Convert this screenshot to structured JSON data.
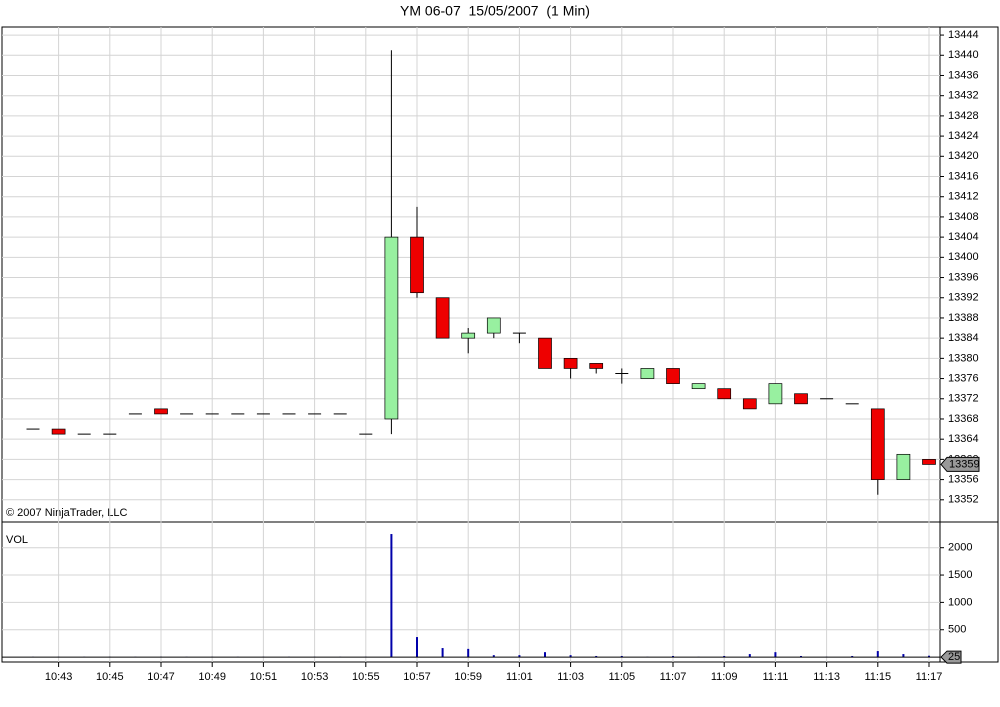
{
  "chart_data": [
    {
      "type": "candlestick",
      "title": "YM 06-07  15/05/2007  (1 Min)",
      "annotation": "© 2007 NinjaTrader, LLC",
      "categories": [
        null,
        "10:43",
        null,
        "10:45",
        null,
        "10:47",
        null,
        "10:49",
        null,
        "10:51",
        null,
        "10:53",
        null,
        "10:55",
        null,
        "10:57",
        null,
        "10:59",
        null,
        "11:01",
        null,
        "11:03",
        null,
        "11:05",
        null,
        "11:07",
        null,
        "11:09",
        null,
        "11:11",
        null,
        "11:13",
        null,
        "11:15",
        null,
        "11:17"
      ],
      "open": [
        13366,
        13366,
        13365,
        13365,
        13369,
        13370,
        13369,
        13369,
        13369,
        13369,
        13369,
        13369,
        13369,
        13365,
        13368,
        13404,
        13392,
        13384,
        13385,
        13385,
        13384,
        13380,
        13379,
        13377,
        13376,
        13378,
        13374,
        13374,
        13372,
        13371,
        13373,
        13372,
        13371,
        13370,
        13356,
        13360
      ],
      "high": [
        13366,
        13366,
        13365,
        13365,
        13369,
        13370,
        13369,
        13369,
        13369,
        13369,
        13369,
        13369,
        13369,
        13365,
        13441,
        13410,
        13392,
        13386,
        13388,
        13385,
        13384,
        13380,
        13379,
        13378,
        13378,
        13378,
        13375,
        13374,
        13372,
        13375,
        13373,
        13372,
        13371,
        13370,
        13361,
        13360
      ],
      "low": [
        13366,
        13365,
        13365,
        13365,
        13369,
        13369,
        13369,
        13369,
        13369,
        13369,
        13369,
        13369,
        13369,
        13365,
        13365,
        13392,
        13384,
        13381,
        13384,
        13383,
        13378,
        13376,
        13377,
        13375,
        13376,
        13375,
        13374,
        13372,
        13370,
        13371,
        13371,
        13372,
        13371,
        13353,
        13356,
        13359
      ],
      "close": [
        13366,
        13365,
        13365,
        13365,
        13369,
        13369,
        13369,
        13369,
        13369,
        13369,
        13369,
        13369,
        13369,
        13365,
        13404,
        13393,
        13384,
        13385,
        13388,
        13385,
        13378,
        13378,
        13378,
        13377,
        13378,
        13375,
        13375,
        13372,
        13370,
        13375,
        13371,
        13372,
        13371,
        13356,
        13361,
        13359
      ],
      "up_color": "#98f0a0",
      "down_color": "#ee0000",
      "ylim": [
        13348,
        13445.4
      ],
      "yticks": [
        13352,
        13356,
        13360,
        13364,
        13368,
        13372,
        13376,
        13380,
        13384,
        13388,
        13392,
        13396,
        13400,
        13404,
        13408,
        13412,
        13416,
        13420,
        13424,
        13428,
        13432,
        13436,
        13440,
        13444
      ],
      "grid": true
    },
    {
      "type": "bar",
      "label": "VOL",
      "values": [
        5,
        5,
        5,
        5,
        5,
        5,
        5,
        5,
        5,
        5,
        5,
        5,
        5,
        5,
        2250,
        366,
        165,
        150,
        35,
        35,
        90,
        35,
        20,
        20,
        5,
        20,
        5,
        20,
        55,
        90,
        20,
        5,
        20,
        110,
        55,
        25
      ],
      "color": "#0000aa",
      "ylim": [
        -90,
        2470
      ],
      "yticks": [
        500,
        1000,
        1500,
        2000
      ],
      "grid": true
    }
  ]
}
